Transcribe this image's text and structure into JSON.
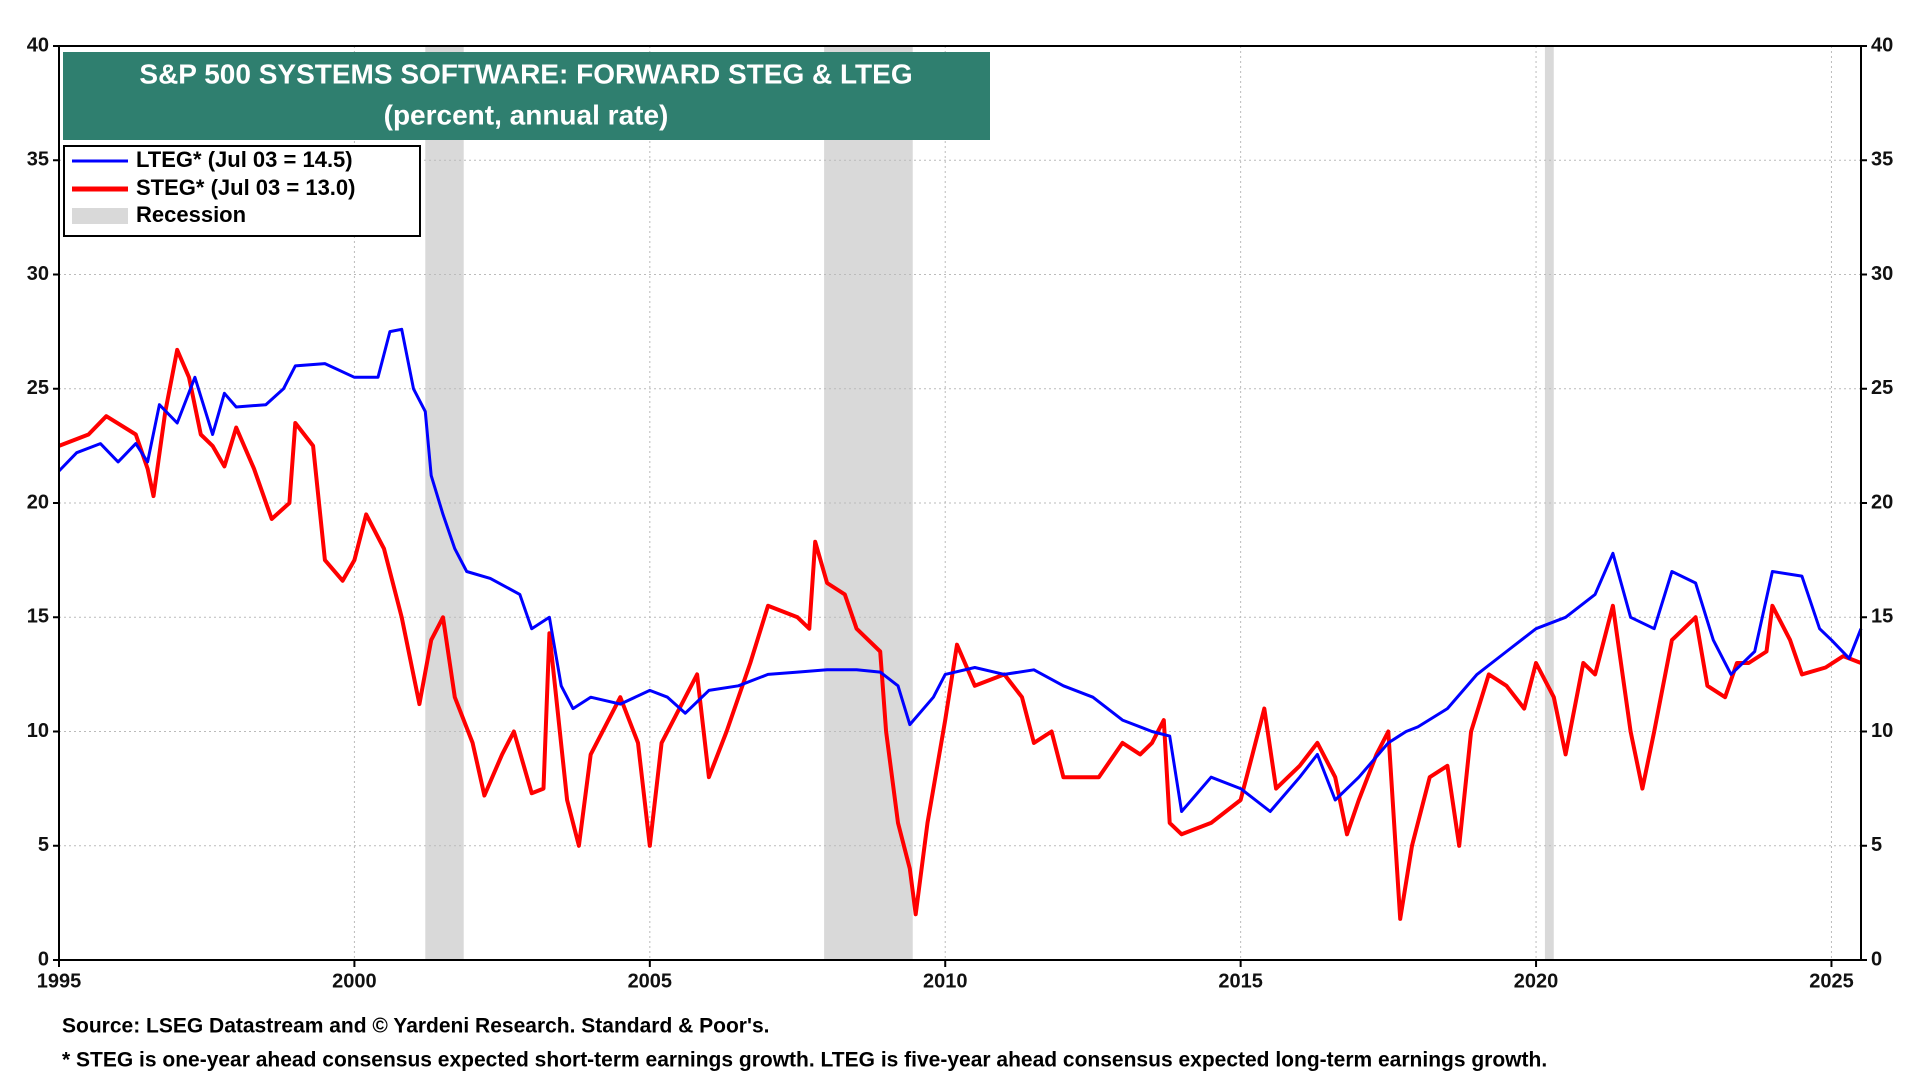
{
  "chart_data": {
    "type": "line",
    "title": "S&P 500 SYSTEMS SOFTWARE: FORWARD STEG & LTEG",
    "subtitle": "(percent, annual rate)",
    "xlim": [
      1995,
      2025.5
    ],
    "xticks": [
      1995,
      2000,
      2005,
      2010,
      2015,
      2020,
      2025
    ],
    "ylim": [
      0,
      40
    ],
    "yticks": [
      0,
      5,
      10,
      15,
      20,
      25,
      30,
      35,
      40
    ],
    "y2lim": [
      0,
      40
    ],
    "y2ticks": [
      0,
      5,
      10,
      15,
      20,
      25,
      30,
      35,
      40
    ],
    "grid": true,
    "legend": "top-left",
    "recession_label": "Recession",
    "recession_color": "#d9d9d9",
    "recessions": [
      [
        2001.2,
        2001.85
      ],
      [
        2007.95,
        2009.45
      ],
      [
        2020.15,
        2020.3
      ]
    ],
    "series": [
      {
        "name": "LTEG* (Jul 03 = 14.5)",
        "color": "#0000ff",
        "x": [
          1995.0,
          1995.3,
          1995.7,
          1996.0,
          1996.3,
          1996.5,
          1996.7,
          1997.0,
          1997.3,
          1997.6,
          1997.8,
          1998.0,
          1998.5,
          1998.8,
          1999.0,
          1999.5,
          2000.0,
          2000.4,
          2000.6,
          2000.8,
          2001.0,
          2001.2,
          2001.3,
          2001.5,
          2001.7,
          2001.9,
          2002.3,
          2002.8,
          2003.0,
          2003.3,
          2003.5,
          2003.7,
          2004.0,
          2004.5,
          2005.0,
          2005.3,
          2005.6,
          2006.0,
          2006.5,
          2007.0,
          2007.5,
          2008.0,
          2008.5,
          2008.9,
          2009.2,
          2009.4,
          2009.8,
          2010.0,
          2010.5,
          2011.0,
          2011.5,
          2012.0,
          2012.5,
          2013.0,
          2013.5,
          2013.8,
          2014.0,
          2014.5,
          2015.0,
          2015.5,
          2016.0,
          2016.3,
          2016.6,
          2017.0,
          2017.5,
          2017.8,
          2018.0,
          2018.5,
          2019.0,
          2019.5,
          2020.0,
          2020.5,
          2021.0,
          2021.3,
          2021.6,
          2022.0,
          2022.3,
          2022.7,
          2023.0,
          2023.3,
          2023.7,
          2024.0,
          2024.5,
          2024.8,
          2025.0,
          2025.3,
          2025.5
        ],
        "values": [
          21.4,
          22.2,
          22.6,
          21.8,
          22.6,
          21.8,
          24.3,
          23.5,
          25.5,
          23.0,
          24.8,
          24.2,
          24.3,
          25.0,
          26.0,
          26.1,
          25.5,
          25.5,
          27.5,
          27.6,
          25.0,
          24.0,
          21.2,
          19.5,
          18.0,
          17.0,
          16.7,
          16.0,
          14.5,
          15.0,
          12.0,
          11.0,
          11.5,
          11.2,
          11.8,
          11.5,
          10.8,
          11.8,
          12.0,
          12.5,
          12.6,
          12.7,
          12.7,
          12.6,
          12.0,
          10.3,
          11.5,
          12.5,
          12.8,
          12.5,
          12.7,
          12.0,
          11.5,
          10.5,
          10.0,
          9.8,
          6.5,
          8.0,
          7.5,
          6.5,
          8.0,
          9.0,
          7.0,
          8.0,
          9.5,
          10.0,
          10.2,
          11.0,
          12.5,
          13.5,
          14.5,
          15.0,
          16.0,
          17.8,
          15.0,
          14.5,
          17.0,
          16.5,
          14.0,
          12.5,
          13.5,
          17.0,
          16.8,
          14.5,
          14.0,
          13.2,
          14.5
        ]
      },
      {
        "name": "STEG* (Jul 03 = 13.0)",
        "color": "#ff0000",
        "x": [
          1995.0,
          1995.5,
          1995.8,
          1996.3,
          1996.5,
          1996.6,
          1996.8,
          1997.0,
          1997.2,
          1997.4,
          1997.6,
          1997.8,
          1998.0,
          1998.3,
          1998.6,
          1998.9,
          1999.0,
          1999.3,
          1999.5,
          1999.8,
          2000.0,
          2000.2,
          2000.5,
          2000.8,
          2001.1,
          2001.3,
          2001.5,
          2001.7,
          2002.0,
          2002.2,
          2002.5,
          2002.7,
          2003.0,
          2003.2,
          2003.3,
          2003.6,
          2003.8,
          2004.0,
          2004.5,
          2004.8,
          2005.0,
          2005.2,
          2005.5,
          2005.8,
          2006.0,
          2006.3,
          2006.7,
          2007.0,
          2007.5,
          2007.7,
          2007.8,
          2008.0,
          2008.3,
          2008.5,
          2008.9,
          2009.0,
          2009.2,
          2009.4,
          2009.5,
          2009.7,
          2010.0,
          2010.2,
          2010.5,
          2011.0,
          2011.3,
          2011.5,
          2011.8,
          2012.0,
          2012.3,
          2012.6,
          2013.0,
          2013.3,
          2013.5,
          2013.7,
          2013.8,
          2014.0,
          2014.5,
          2015.0,
          2015.2,
          2015.4,
          2015.6,
          2016.0,
          2016.3,
          2016.6,
          2016.8,
          2017.0,
          2017.3,
          2017.5,
          2017.7,
          2017.9,
          2018.2,
          2018.5,
          2018.7,
          2018.9,
          2019.2,
          2019.5,
          2019.8,
          2020.0,
          2020.3,
          2020.5,
          2020.8,
          2021.0,
          2021.3,
          2021.6,
          2021.8,
          2022.0,
          2022.3,
          2022.7,
          2022.9,
          2023.2,
          2023.4,
          2023.6,
          2023.9,
          2024.0,
          2024.3,
          2024.5,
          2024.9,
          2025.2,
          2025.5
        ],
        "values": [
          22.5,
          23.0,
          23.8,
          23.0,
          21.5,
          20.3,
          24.0,
          26.7,
          25.5,
          23.0,
          22.5,
          21.6,
          23.3,
          21.5,
          19.3,
          20.0,
          23.5,
          22.5,
          17.5,
          16.6,
          17.5,
          19.5,
          18.0,
          15.0,
          11.2,
          14.0,
          15.0,
          11.5,
          9.5,
          7.2,
          9.0,
          10.0,
          7.3,
          7.5,
          14.3,
          7.0,
          5.0,
          9.0,
          11.5,
          9.5,
          5.0,
          9.5,
          11.0,
          12.5,
          8.0,
          10.0,
          13.0,
          15.5,
          15.0,
          14.5,
          18.3,
          16.5,
          16.0,
          14.5,
          13.5,
          10.0,
          6.0,
          4.0,
          2.0,
          6.0,
          10.5,
          13.8,
          12.0,
          12.5,
          11.5,
          9.5,
          10.0,
          8.0,
          8.0,
          8.0,
          9.5,
          9.0,
          9.5,
          10.5,
          6.0,
          5.5,
          6.0,
          7.0,
          9.0,
          11.0,
          7.5,
          8.5,
          9.5,
          8.0,
          5.5,
          7.0,
          9.0,
          10.0,
          1.8,
          5.0,
          8.0,
          8.5,
          5.0,
          10.0,
          12.5,
          12.0,
          11.0,
          13.0,
          11.5,
          9.0,
          13.0,
          12.5,
          15.5,
          10.0,
          7.5,
          10.0,
          14.0,
          15.0,
          12.0,
          11.5,
          13.0,
          13.0,
          13.5,
          15.5,
          14.0,
          12.5,
          12.8,
          13.3,
          13.0
        ]
      }
    ],
    "source": "Source: LSEG Datastream and © Yardeni Research. Standard & Poor's.",
    "footnote": "* STEG is one-year ahead consensus expected short-term earnings growth. LTEG is five-year ahead consensus expected long-term earnings growth."
  }
}
